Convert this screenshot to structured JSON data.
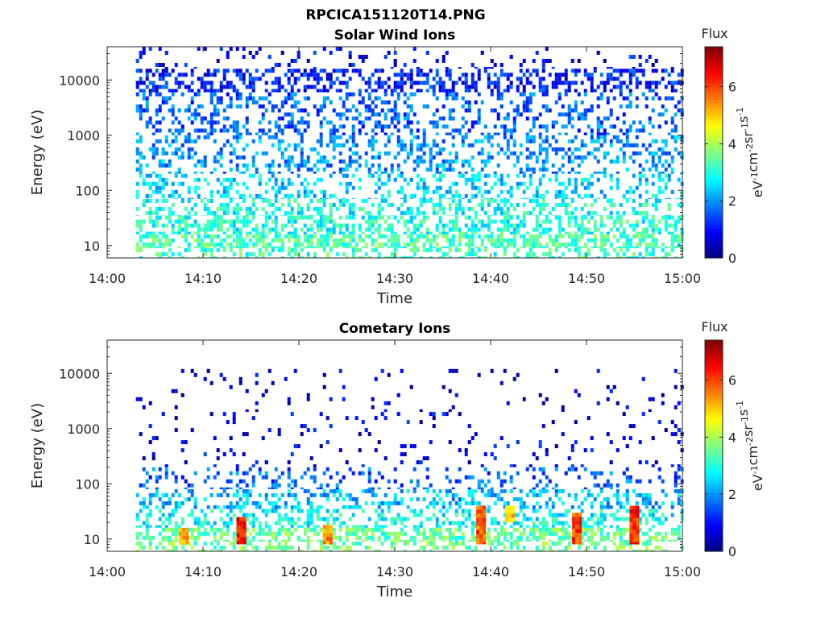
{
  "figure_title": "RPCICA151120T14.PNG",
  "chart_data": [
    {
      "type": "heatmap",
      "title": "Solar Wind Ions",
      "xlabel": "Time",
      "ylabel": "Energy (eV)",
      "x_ticks": [
        "14:00",
        "14:10",
        "14:20",
        "14:30",
        "14:40",
        "14:50",
        "15:00"
      ],
      "y_ticks": [
        "10",
        "100",
        "1000",
        "10000"
      ],
      "y_scale": "log",
      "xlim": [
        "14:00",
        "15:00"
      ],
      "ylim": [
        6,
        40000
      ],
      "data_time_range": [
        "14:03",
        "15:00"
      ],
      "colorbar": {
        "title": "Flux",
        "label": "eV-1cm-2sr-1s-1",
        "ticks": [
          "0",
          "2",
          "4",
          "6"
        ],
        "range": [
          0,
          7.4
        ],
        "colormap": "jet"
      },
      "bands": [
        {
          "energy_min": 6,
          "energy_max": 9,
          "flux_mean": 3.2,
          "density": 0.35
        },
        {
          "energy_min": 9,
          "energy_max": 16,
          "flux_mean": 3.3,
          "density": 0.6
        },
        {
          "energy_min": 16,
          "energy_max": 35,
          "flux_mean": 3.0,
          "density": 0.5
        },
        {
          "energy_min": 35,
          "energy_max": 70,
          "flux_mean": 2.9,
          "density": 0.45
        },
        {
          "energy_min": 70,
          "energy_max": 200,
          "flux_mean": 2.5,
          "density": 0.35
        },
        {
          "energy_min": 200,
          "energy_max": 1000,
          "flux_mean": 2.0,
          "density": 0.33
        },
        {
          "energy_min": 1000,
          "energy_max": 6000,
          "flux_mean": 1.6,
          "density": 0.33
        },
        {
          "energy_min": 6000,
          "energy_max": 16000,
          "flux_mean": 1.1,
          "density": 0.45
        },
        {
          "energy_min": 16000,
          "energy_max": 40000,
          "flux_mean": 0.9,
          "density": 0.1
        }
      ],
      "hotspots": []
    },
    {
      "type": "heatmap",
      "title": "Cometary Ions",
      "xlabel": "Time",
      "ylabel": "Energy (eV)",
      "x_ticks": [
        "14:00",
        "14:10",
        "14:20",
        "14:30",
        "14:40",
        "14:50",
        "15:00"
      ],
      "y_ticks": [
        "10",
        "100",
        "1000",
        "10000"
      ],
      "y_scale": "log",
      "xlim": [
        "14:00",
        "15:00"
      ],
      "ylim": [
        6,
        40000
      ],
      "data_time_range": [
        "14:03",
        "15:00"
      ],
      "colorbar": {
        "title": "Flux",
        "label": "eV-1cm-2sr-1s-1",
        "ticks": [
          "0",
          "2",
          "4",
          "6"
        ],
        "range": [
          0,
          7.4
        ],
        "colormap": "jet"
      },
      "bands": [
        {
          "energy_min": 6,
          "energy_max": 9,
          "flux_mean": 3.6,
          "density": 0.45
        },
        {
          "energy_min": 9,
          "energy_max": 16,
          "flux_mean": 3.5,
          "density": 0.6
        },
        {
          "energy_min": 16,
          "energy_max": 35,
          "flux_mean": 2.8,
          "density": 0.45
        },
        {
          "energy_min": 35,
          "energy_max": 80,
          "flux_mean": 2.3,
          "density": 0.35
        },
        {
          "energy_min": 80,
          "energy_max": 200,
          "flux_mean": 1.6,
          "density": 0.22
        },
        {
          "energy_min": 200,
          "energy_max": 2000,
          "flux_mean": 0.8,
          "density": 0.07
        },
        {
          "energy_min": 2000,
          "energy_max": 12000,
          "flux_mean": 0.6,
          "density": 0.05
        }
      ],
      "hotspots": [
        {
          "time": "14:08",
          "energy_min": 8,
          "energy_max": 16,
          "flux": 5.4
        },
        {
          "time": "14:14",
          "energy_min": 8,
          "energy_max": 25,
          "flux": 6.5
        },
        {
          "time": "14:23",
          "energy_min": 8,
          "energy_max": 18,
          "flux": 5.5
        },
        {
          "time": "14:39",
          "energy_min": 8,
          "energy_max": 40,
          "flux": 5.8
        },
        {
          "time": "14:42",
          "energy_min": 20,
          "energy_max": 40,
          "flux": 5.0
        },
        {
          "time": "14:49",
          "energy_min": 8,
          "energy_max": 30,
          "flux": 6.0
        },
        {
          "time": "14:55",
          "energy_min": 8,
          "energy_max": 40,
          "flux": 6.2
        }
      ]
    }
  ]
}
